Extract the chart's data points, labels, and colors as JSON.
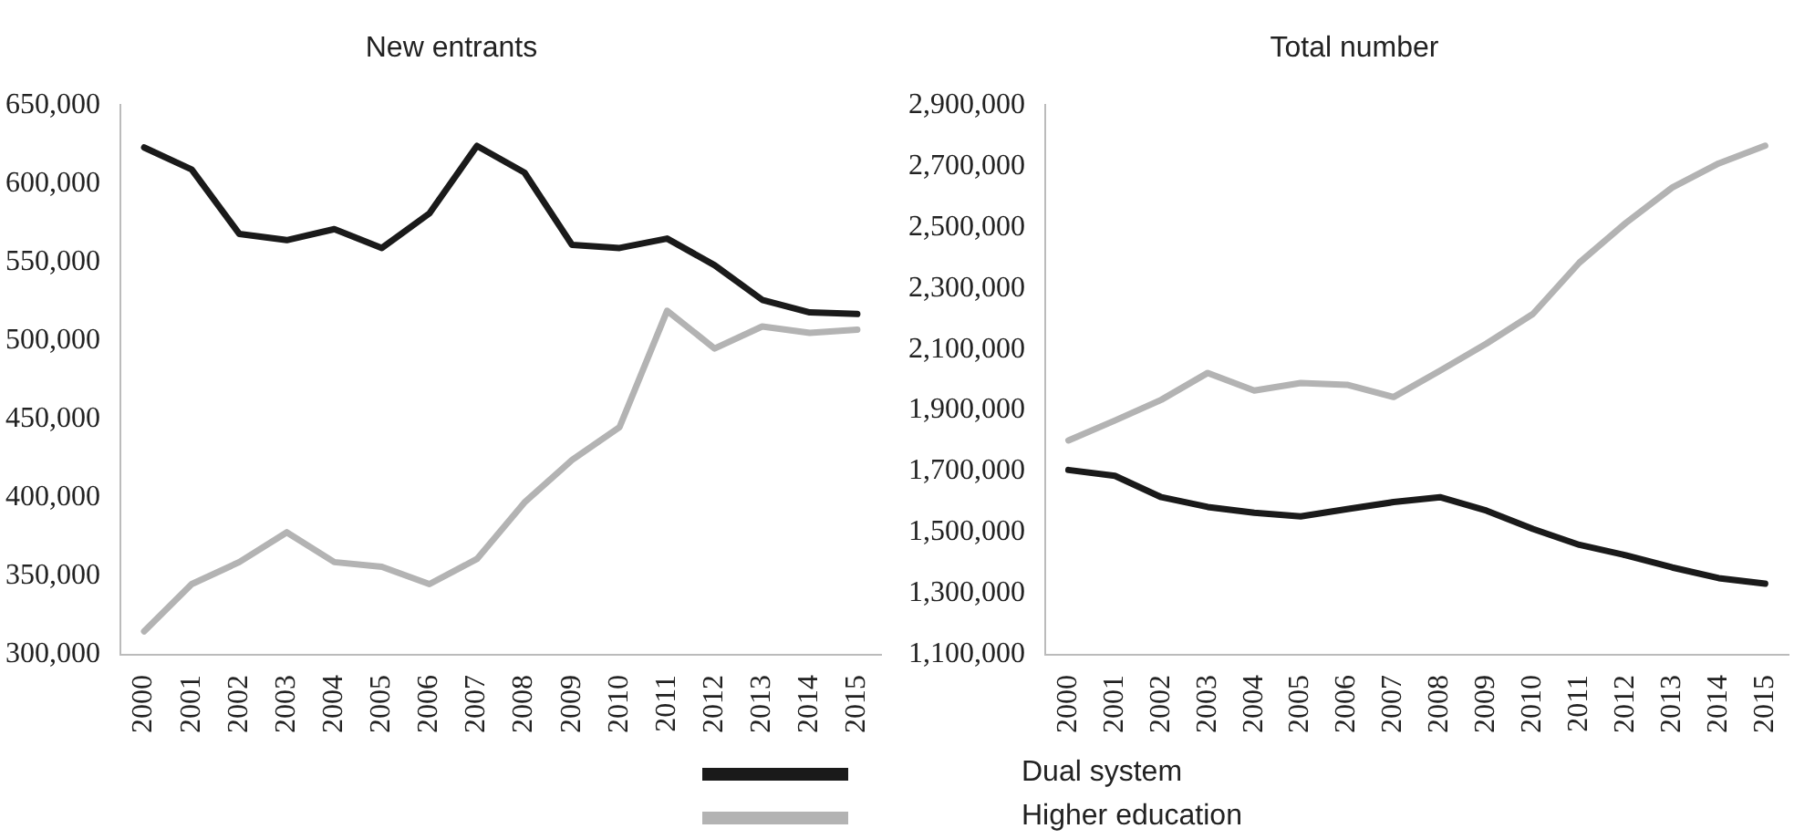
{
  "chart_data": [
    {
      "type": "line",
      "title": "New entrants",
      "categories": [
        "2000",
        "2001",
        "2002",
        "2003",
        "2004",
        "2005",
        "2006",
        "2007",
        "2008",
        "2009",
        "2010",
        "2011",
        "2012",
        "2013",
        "2014",
        "2015"
      ],
      "series": [
        {
          "name": "Dual system",
          "color": "#1a1a1a",
          "values": [
            623000,
            609000,
            568000,
            564000,
            571000,
            559000,
            581000,
            624000,
            607000,
            561000,
            559000,
            565000,
            548000,
            526000,
            518000,
            517000
          ]
        },
        {
          "name": "Higher education",
          "color": "#b3b3b3",
          "values": [
            315000,
            345000,
            359000,
            378000,
            359000,
            356000,
            345000,
            361000,
            397000,
            424000,
            445000,
            519000,
            495000,
            509000,
            505000,
            507000
          ]
        }
      ],
      "ylim": [
        300000,
        650000
      ],
      "yticks": [
        {
          "value": 300000,
          "label": "300,000"
        },
        {
          "value": 350000,
          "label": "350,000"
        },
        {
          "value": 400000,
          "label": "400,000"
        },
        {
          "value": 450000,
          "label": "450,000"
        },
        {
          "value": 500000,
          "label": "500,000"
        },
        {
          "value": 550000,
          "label": "550,000"
        },
        {
          "value": 600000,
          "label": "600,000"
        },
        {
          "value": 650000,
          "label": "650,000"
        }
      ],
      "grid": false,
      "legend": "bottom",
      "marker": "none"
    },
    {
      "type": "line",
      "title": "Total number",
      "categories": [
        "2000",
        "2001",
        "2002",
        "2003",
        "2004",
        "2005",
        "2006",
        "2007",
        "2008",
        "2009",
        "2010",
        "2011",
        "2012",
        "2013",
        "2014",
        "2015"
      ],
      "series": [
        {
          "color": "#1a1a1a",
          "values": [
            1705000,
            1686000,
            1616000,
            1584000,
            1565000,
            1553000,
            1577000,
            1600000,
            1616000,
            1572000,
            1512000,
            1460000,
            1426000,
            1386000,
            1351000,
            1333000
          ]
        },
        {
          "color": "#b3b3b3",
          "values": [
            1802000,
            1867000,
            1935000,
            2023000,
            1965000,
            1990000,
            1984000,
            1944000,
            2030000,
            2119000,
            2216000,
            2384000,
            2514000,
            2630000,
            2709000,
            2767000
          ]
        }
      ],
      "ylim": [
        1100000,
        2900000
      ],
      "yticks": [
        {
          "value": 1100000,
          "label": "1,100,000"
        },
        {
          "value": 1300000,
          "label": "1,300,000"
        },
        {
          "value": 1500000,
          "label": "1,500,000"
        },
        {
          "value": 1700000,
          "label": "1,700,000"
        },
        {
          "value": 1900000,
          "label": "1,900,000"
        },
        {
          "value": 2100000,
          "label": "2,100,000"
        },
        {
          "value": 2300000,
          "label": "2,300,000"
        },
        {
          "value": 2500000,
          "label": "2,500,000"
        },
        {
          "value": 2700000,
          "label": "2,700,000"
        },
        {
          "value": 2900000,
          "label": "2,900,000"
        }
      ],
      "grid": false,
      "marker": "none"
    }
  ]
}
